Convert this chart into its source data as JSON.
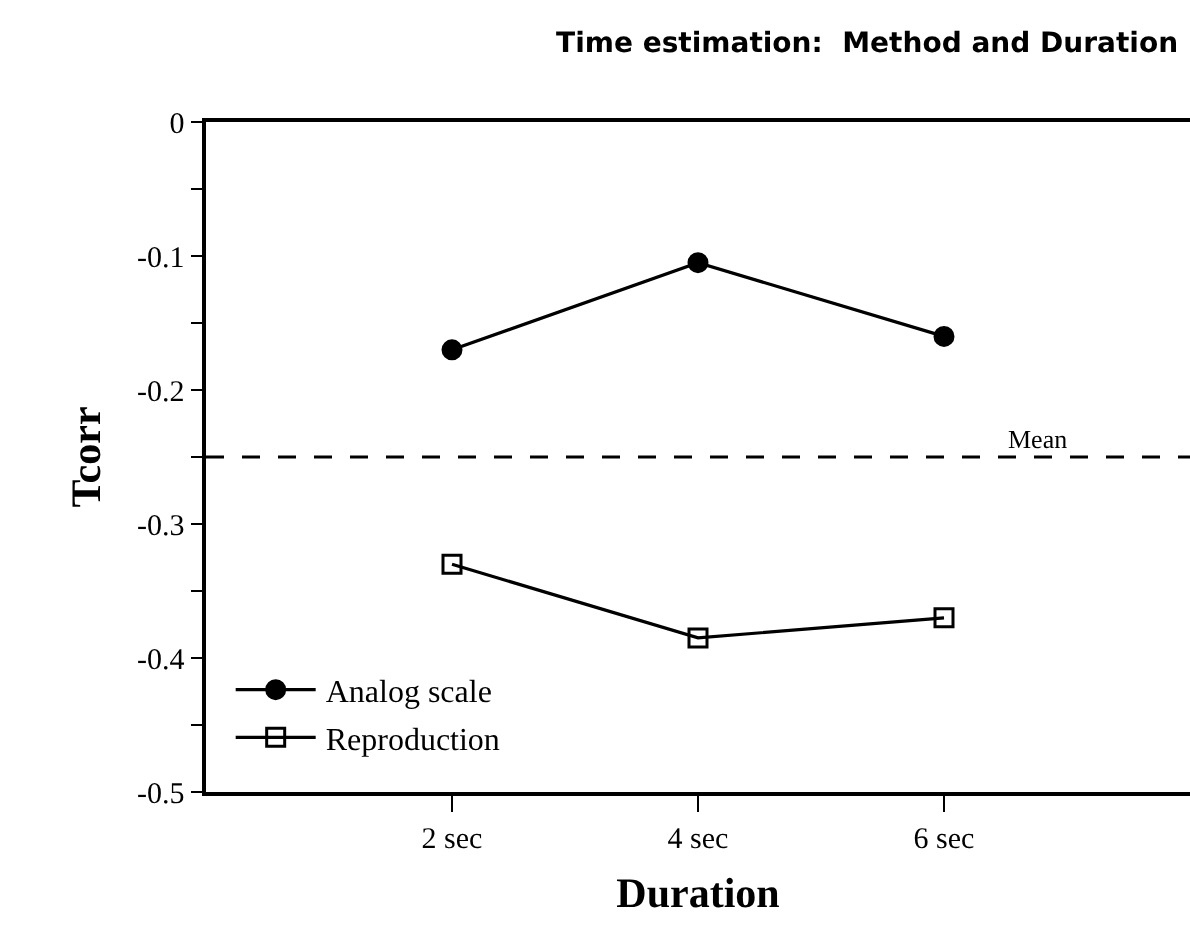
{
  "chart_data": {
    "type": "line",
    "title": "Time estimation:  Method and Duration",
    "xlabel": "Duration",
    "ylabel": "Tcorr",
    "x": [
      2,
      4,
      6
    ],
    "xlim": [
      0,
      8
    ],
    "xticks": [
      {
        "value": 2,
        "label": "2 sec"
      },
      {
        "value": 4,
        "label": "4 sec"
      },
      {
        "value": 6,
        "label": "6 sec"
      }
    ],
    "ylim": [
      -0.5,
      0
    ],
    "yticks": [
      -0.5,
      {
        "value": -0.45,
        "label": null
      },
      -0.4,
      {
        "value": -0.35,
        "label": null
      },
      -0.3,
      {
        "value": -0.25,
        "label": null
      },
      -0.2,
      {
        "value": -0.15,
        "label": null
      },
      -0.1,
      {
        "value": -0.05,
        "label": null
      },
      0
    ],
    "series": [
      {
        "name": "Analog scale",
        "color": "#000000",
        "marker": "circle",
        "values": [
          -0.17,
          -0.105,
          -0.16
        ]
      },
      {
        "name": "Reproduction",
        "color": "#000000",
        "marker": "square",
        "values": [
          -0.33,
          -0.385,
          -0.37
        ]
      }
    ],
    "ref_lines": [
      {
        "axis": "y",
        "value": -0.25,
        "label": "Mean",
        "line_style": "dashed",
        "color": "#000000"
      }
    ],
    "line_style": "solid",
    "legend": "bottom left"
  }
}
